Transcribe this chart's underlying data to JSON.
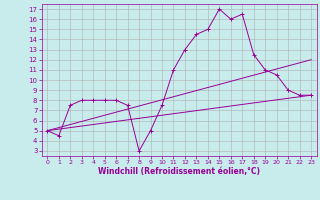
{
  "xlabel": "Windchill (Refroidissement éolien,°C)",
  "bg_color": "#c8ecec",
  "line_color": "#990099",
  "grid_color": "#b0b0b0",
  "xlim": [
    -0.5,
    23.5
  ],
  "ylim": [
    2.5,
    17.5
  ],
  "xticks": [
    0,
    1,
    2,
    3,
    4,
    5,
    6,
    7,
    8,
    9,
    10,
    11,
    12,
    13,
    14,
    15,
    16,
    17,
    18,
    19,
    20,
    21,
    22,
    23
  ],
  "yticks": [
    3,
    4,
    5,
    6,
    7,
    8,
    9,
    10,
    11,
    12,
    13,
    14,
    15,
    16,
    17
  ],
  "series1": [
    5.0,
    4.5,
    7.5,
    8.0,
    8.0,
    8.0,
    8.0,
    7.5,
    3.0,
    5.0,
    7.5,
    11.0,
    13.0,
    14.5,
    15.0,
    17.0,
    16.0,
    16.5,
    12.5,
    11.0,
    10.5,
    9.0,
    8.5,
    8.5
  ],
  "trend1_x": [
    0,
    23
  ],
  "trend1_y": [
    5.0,
    8.5
  ],
  "trend2_x": [
    0,
    23
  ],
  "trend2_y": [
    5.0,
    12.0
  ],
  "tick_fontsize": 5,
  "xlabel_fontsize": 5.5,
  "linewidth": 0.7,
  "markersize": 3
}
